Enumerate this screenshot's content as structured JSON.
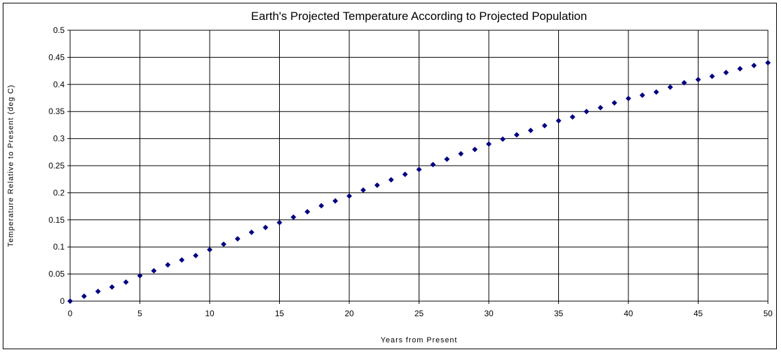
{
  "chart_data": {
    "type": "scatter",
    "title": "Earth's Projected Temperature According to Projected Population",
    "xlabel": "Years from Present",
    "ylabel": "Temperature Relative to Present (deg C)",
    "xlim": [
      0,
      50
    ],
    "ylim": [
      0,
      0.5
    ],
    "xticks": [
      0,
      5,
      10,
      15,
      20,
      25,
      30,
      35,
      40,
      45,
      50
    ],
    "yticks": [
      "0",
      "0.05",
      "0.1",
      "0.15",
      "0.2",
      "0.25",
      "0.3",
      "0.35",
      "0.4",
      "0.45",
      "0.5"
    ],
    "grid": true,
    "marker_color": "#000080",
    "series": [
      {
        "x": [
          0,
          1,
          2,
          3,
          4,
          5,
          6,
          7,
          8,
          9,
          10,
          11,
          12,
          13,
          14,
          15,
          16,
          17,
          18,
          19,
          20,
          21,
          22,
          23,
          24,
          25,
          26,
          27,
          28,
          29,
          30,
          31,
          32,
          33,
          34,
          35,
          36,
          37,
          38,
          39,
          40,
          41,
          42,
          43,
          44,
          45,
          46,
          47,
          48,
          49,
          50
        ],
        "y": [
          0,
          0.009,
          0.018,
          0.026,
          0.035,
          0.047,
          0.056,
          0.067,
          0.076,
          0.084,
          0.095,
          0.105,
          0.115,
          0.127,
          0.136,
          0.145,
          0.155,
          0.165,
          0.176,
          0.185,
          0.194,
          0.205,
          0.214,
          0.224,
          0.234,
          0.243,
          0.252,
          0.262,
          0.272,
          0.28,
          0.29,
          0.299,
          0.307,
          0.315,
          0.324,
          0.333,
          0.34,
          0.35,
          0.357,
          0.366,
          0.374,
          0.38,
          0.386,
          0.395,
          0.403,
          0.409,
          0.415,
          0.422,
          0.429,
          0.435,
          0.44
        ]
      }
    ]
  }
}
